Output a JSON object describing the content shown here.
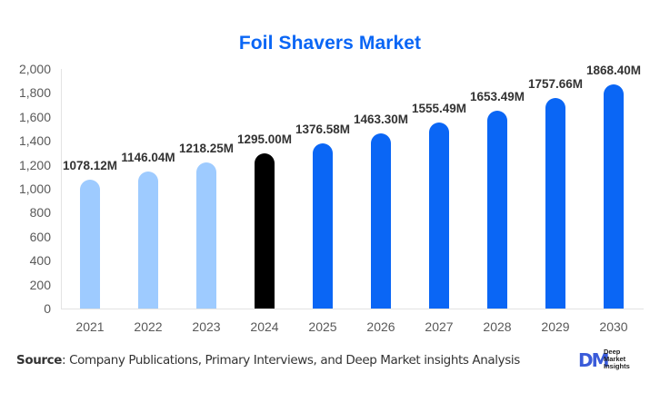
{
  "chart_data": {
    "type": "bar",
    "title": "Foil Shavers Market",
    "categories": [
      "2021",
      "2022",
      "2023",
      "2024",
      "2025",
      "2026",
      "2027",
      "2028",
      "2029",
      "2030"
    ],
    "values": [
      1078.12,
      1146.04,
      1218.25,
      1295.0,
      1376.58,
      1463.3,
      1555.49,
      1653.49,
      1757.66,
      1868.4
    ],
    "data_labels": [
      "1078.12M",
      "1146.04M",
      "1218.25M",
      "1295.00M",
      "1376.58M",
      "1463.30M",
      "1555.49M",
      "1653.49M",
      "1757.66M",
      "1868.40M"
    ],
    "bar_colors": [
      "#9ecbff",
      "#9ecbff",
      "#9ecbff",
      "#000000",
      "#0a66f5",
      "#0a66f5",
      "#0a66f5",
      "#0a66f5",
      "#0a66f5",
      "#0a66f5"
    ],
    "xlabel": "",
    "ylabel": "",
    "ylim": [
      0,
      2000
    ],
    "yticks": [
      "0",
      "200",
      "400",
      "600",
      "800",
      "1,000",
      "1,200",
      "1,400",
      "1,600",
      "1,800",
      "2,000"
    ],
    "grid": false,
    "legend": null
  },
  "colors": {
    "title": "#0a66f5",
    "historical": "#9ecbff",
    "base_year": "#000000",
    "forecast": "#0a66f5"
  },
  "footer": {
    "source_label": "Source",
    "source_text": ": Company Publications, Primary Interviews, and Deep Market insights Analysis",
    "logo_mark": "DM",
    "logo_line1": "Deep",
    "logo_line2": "Market",
    "logo_line3": "Insights"
  }
}
